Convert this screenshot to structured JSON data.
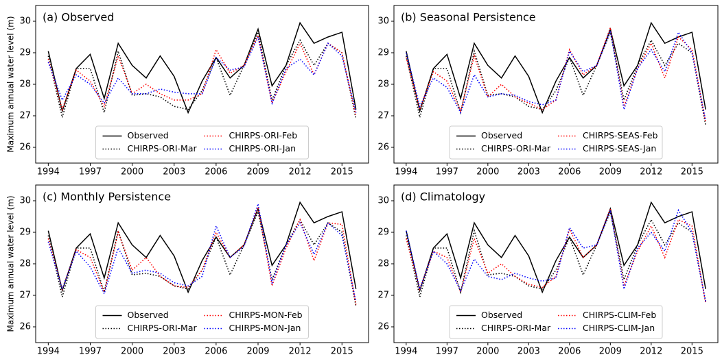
{
  "chart_data": [
    {
      "type": "line",
      "title": "(a) Observed",
      "ylabel": "Maximum annual water level (m)",
      "x": [
        1994,
        1995,
        1996,
        1997,
        1998,
        1999,
        2000,
        2001,
        2002,
        2003,
        2004,
        2005,
        2006,
        2007,
        2008,
        2009,
        2010,
        2011,
        2012,
        2013,
        2014,
        2015,
        2016
      ],
      "xlim": [
        1993.1,
        2016.9
      ],
      "ylim": [
        25.5,
        30.5
      ],
      "xticks": [
        1994,
        1997,
        2000,
        2003,
        2006,
        2009,
        2012,
        2015
      ],
      "yticks": [
        26,
        27,
        28,
        29,
        30
      ],
      "grid": false,
      "legend": "lower center",
      "series": [
        {
          "name": "Observed",
          "color": "#000000",
          "style": "solid",
          "values": [
            29.05,
            27.15,
            28.5,
            28.95,
            27.55,
            29.3,
            28.6,
            28.2,
            28.9,
            28.25,
            27.1,
            28.1,
            28.85,
            28.2,
            28.6,
            29.75,
            27.95,
            28.6,
            29.95,
            29.3,
            29.5,
            29.65,
            27.2
          ]
        },
        {
          "name": "CHIRPS-ORI-Mar",
          "color": "#000000",
          "style": "dotted",
          "values": [
            28.9,
            26.95,
            28.5,
            28.5,
            27.1,
            29.05,
            27.65,
            27.7,
            27.6,
            27.3,
            27.2,
            27.8,
            28.85,
            27.65,
            28.6,
            29.65,
            27.5,
            28.6,
            29.4,
            28.6,
            29.3,
            29.0,
            26.9
          ]
        },
        {
          "name": "CHIRPS-ORI-Feb",
          "color": "#ff0000",
          "style": "dotted",
          "values": [
            28.8,
            27.2,
            28.45,
            28.1,
            27.3,
            28.9,
            27.7,
            28.0,
            27.7,
            27.5,
            27.5,
            27.7,
            29.1,
            28.35,
            28.6,
            29.55,
            27.4,
            28.4,
            29.3,
            28.3,
            29.3,
            29.0,
            27.0
          ]
        },
        {
          "name": "CHIRPS-ORI-Jan",
          "color": "#0000ff",
          "style": "dotted",
          "values": [
            28.7,
            27.5,
            28.3,
            28.0,
            27.4,
            28.2,
            27.7,
            27.7,
            27.85,
            27.75,
            27.7,
            27.7,
            28.85,
            28.45,
            28.55,
            29.5,
            27.4,
            28.5,
            28.8,
            28.3,
            29.3,
            28.9,
            27.1
          ]
        }
      ]
    },
    {
      "type": "line",
      "title": "(b) Seasonal Persistence",
      "x": [
        1994,
        1995,
        1996,
        1997,
        1998,
        1999,
        2000,
        2001,
        2002,
        2003,
        2004,
        2005,
        2006,
        2007,
        2008,
        2009,
        2010,
        2011,
        2012,
        2013,
        2014,
        2015,
        2016
      ],
      "xlim": [
        1993.1,
        2016.9
      ],
      "ylim": [
        25.5,
        30.5
      ],
      "xticks": [
        1994,
        1997,
        2000,
        2003,
        2006,
        2009,
        2012,
        2015
      ],
      "yticks": [
        26,
        27,
        28,
        29,
        30
      ],
      "grid": false,
      "legend": "lower center",
      "series": [
        {
          "name": "Observed",
          "color": "#000000",
          "style": "solid",
          "values": [
            29.05,
            27.15,
            28.5,
            28.95,
            27.55,
            29.3,
            28.6,
            28.2,
            28.9,
            28.25,
            27.1,
            28.1,
            28.85,
            28.2,
            28.6,
            29.75,
            27.95,
            28.6,
            29.95,
            29.3,
            29.5,
            29.65,
            27.2
          ]
        },
        {
          "name": "CHIRPS-ORI-Mar",
          "color": "#000000",
          "style": "dotted",
          "values": [
            28.9,
            26.95,
            28.5,
            28.5,
            27.1,
            29.05,
            27.65,
            27.7,
            27.6,
            27.3,
            27.2,
            27.8,
            28.85,
            27.65,
            28.6,
            29.65,
            27.5,
            28.6,
            29.4,
            28.6,
            29.3,
            29.0,
            26.7
          ]
        },
        {
          "name": "CHIRPS-SEAS-Feb",
          "color": "#ff0000",
          "style": "dotted",
          "values": [
            28.85,
            27.2,
            28.4,
            28.1,
            27.15,
            28.9,
            27.6,
            28.0,
            27.6,
            27.4,
            27.2,
            27.5,
            29.1,
            28.3,
            28.6,
            29.8,
            27.3,
            28.5,
            29.3,
            28.2,
            29.5,
            29.1,
            26.8
          ]
        },
        {
          "name": "CHIRPS-SEAS-Jan",
          "color": "#0000ff",
          "style": "dotted",
          "values": [
            29.0,
            27.3,
            28.2,
            27.9,
            27.1,
            28.3,
            27.6,
            27.7,
            27.65,
            27.45,
            27.35,
            27.5,
            29.05,
            28.4,
            28.6,
            29.7,
            27.2,
            28.5,
            29.1,
            28.4,
            29.65,
            29.0,
            26.85
          ]
        }
      ]
    },
    {
      "type": "line",
      "title": "(c) Monthly Persistence",
      "ylabel": "Maximum annual water level (m)",
      "x": [
        1994,
        1995,
        1996,
        1997,
        1998,
        1999,
        2000,
        2001,
        2002,
        2003,
        2004,
        2005,
        2006,
        2007,
        2008,
        2009,
        2010,
        2011,
        2012,
        2013,
        2014,
        2015,
        2016
      ],
      "xlim": [
        1993.1,
        2016.9
      ],
      "ylim": [
        25.5,
        30.5
      ],
      "xticks": [
        1994,
        1997,
        2000,
        2003,
        2006,
        2009,
        2012,
        2015
      ],
      "yticks": [
        26,
        27,
        28,
        29,
        30
      ],
      "grid": false,
      "legend": "lower center",
      "series": [
        {
          "name": "Observed",
          "color": "#000000",
          "style": "solid",
          "values": [
            29.05,
            27.15,
            28.5,
            28.95,
            27.55,
            29.3,
            28.6,
            28.2,
            28.9,
            28.25,
            27.1,
            28.1,
            28.85,
            28.2,
            28.6,
            29.75,
            27.95,
            28.6,
            29.95,
            29.3,
            29.5,
            29.65,
            27.2
          ]
        },
        {
          "name": "CHIRPS-ORI-Mar",
          "color": "#000000",
          "style": "dotted",
          "values": [
            28.9,
            26.95,
            28.5,
            28.5,
            27.1,
            29.05,
            27.65,
            27.7,
            27.6,
            27.3,
            27.2,
            27.8,
            28.85,
            27.65,
            28.6,
            29.65,
            27.5,
            28.6,
            29.4,
            28.6,
            29.3,
            29.0,
            26.65
          ]
        },
        {
          "name": "CHIRPS-MON-Feb",
          "color": "#ff0000",
          "style": "dotted",
          "values": [
            28.8,
            27.2,
            28.45,
            28.2,
            27.1,
            29.0,
            27.8,
            28.2,
            27.6,
            27.3,
            27.25,
            27.8,
            29.0,
            28.2,
            28.6,
            29.8,
            27.3,
            28.5,
            29.4,
            28.1,
            29.3,
            29.25,
            26.7
          ]
        },
        {
          "name": "CHIRPS-MON-Jan",
          "color": "#0000ff",
          "style": "dotted",
          "values": [
            28.7,
            27.2,
            28.4,
            27.9,
            27.05,
            28.5,
            27.7,
            27.8,
            27.7,
            27.4,
            27.3,
            27.6,
            29.2,
            28.2,
            28.55,
            29.9,
            27.4,
            28.6,
            29.3,
            28.3,
            29.3,
            28.9,
            26.8
          ]
        }
      ]
    },
    {
      "type": "line",
      "title": "(d) Climatology",
      "x": [
        1994,
        1995,
        1996,
        1997,
        1998,
        1999,
        2000,
        2001,
        2002,
        2003,
        2004,
        2005,
        2006,
        2007,
        2008,
        2009,
        2010,
        2011,
        2012,
        2013,
        2014,
        2015,
        2016
      ],
      "xlim": [
        1993.1,
        2016.9
      ],
      "ylim": [
        25.5,
        30.5
      ],
      "xticks": [
        1994,
        1997,
        2000,
        2003,
        2006,
        2009,
        2012,
        2015
      ],
      "yticks": [
        26,
        27,
        28,
        29,
        30
      ],
      "grid": false,
      "legend": "lower center",
      "series": [
        {
          "name": "Observed",
          "color": "#000000",
          "style": "solid",
          "values": [
            29.05,
            27.15,
            28.5,
            28.95,
            27.55,
            29.3,
            28.6,
            28.2,
            28.9,
            28.25,
            27.1,
            28.1,
            28.85,
            28.2,
            28.6,
            29.75,
            27.95,
            28.6,
            29.95,
            29.3,
            29.5,
            29.65,
            27.2
          ]
        },
        {
          "name": "CHIRPS-ORI-Mar",
          "color": "#000000",
          "style": "dotted",
          "values": [
            28.9,
            26.95,
            28.5,
            28.5,
            27.1,
            29.05,
            27.65,
            27.7,
            27.6,
            27.3,
            27.2,
            27.8,
            28.85,
            27.65,
            28.6,
            29.65,
            27.5,
            28.6,
            29.4,
            28.6,
            29.3,
            29.0,
            26.8
          ]
        },
        {
          "name": "CHIRPS-CLIM-Feb",
          "color": "#ff0000",
          "style": "dotted",
          "values": [
            28.8,
            27.2,
            28.4,
            28.2,
            27.1,
            28.8,
            27.7,
            28.0,
            27.6,
            27.35,
            27.25,
            27.6,
            29.1,
            28.2,
            28.6,
            29.75,
            27.3,
            28.4,
            29.2,
            28.2,
            29.4,
            29.2,
            26.75
          ]
        },
        {
          "name": "CHIRPS-CLIM-Jan",
          "color": "#0000ff",
          "style": "dotted",
          "values": [
            29.05,
            27.2,
            28.4,
            28.0,
            27.15,
            28.15,
            27.6,
            27.5,
            27.7,
            27.55,
            27.45,
            27.55,
            29.15,
            28.5,
            28.6,
            29.7,
            27.2,
            28.5,
            29.0,
            28.4,
            29.7,
            29.0,
            26.8
          ]
        }
      ]
    }
  ]
}
